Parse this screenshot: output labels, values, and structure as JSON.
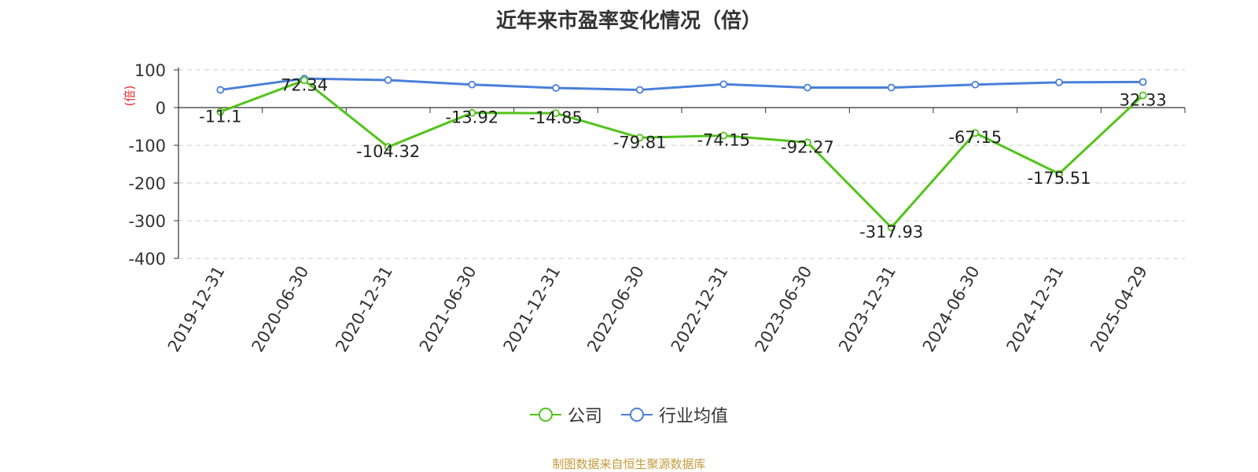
{
  "chart_data": {
    "type": "line",
    "title": "近年来市盈率变化情况（倍）",
    "ylabel": "(倍)",
    "categories": [
      "2019-12-31",
      "2020-06-30",
      "2020-12-31",
      "2021-06-30",
      "2021-12-31",
      "2022-06-30",
      "2022-12-31",
      "2023-06-30",
      "2023-12-31",
      "2024-06-30",
      "2024-12-31",
      "2025-04-29"
    ],
    "yticks": [
      100,
      0,
      -100,
      -200,
      -300,
      -400
    ],
    "ylim": [
      -400,
      100
    ],
    "grid": true,
    "legend_position": "bottom",
    "series": [
      {
        "name": "公司",
        "color": "#52c41a",
        "show_labels": true,
        "values": [
          -11.1,
          72.34,
          -104.32,
          -13.92,
          -14.85,
          -79.81,
          -74.15,
          -92.27,
          -317.93,
          -67.15,
          -175.51,
          32.33
        ]
      },
      {
        "name": "行业均值",
        "color": "#4a7fdb",
        "show_labels": false,
        "values": [
          47,
          77,
          73,
          61,
          52,
          47,
          62,
          53,
          53,
          61,
          67,
          68
        ]
      }
    ]
  },
  "source_note": "制图数据来自恒生聚源数据库"
}
